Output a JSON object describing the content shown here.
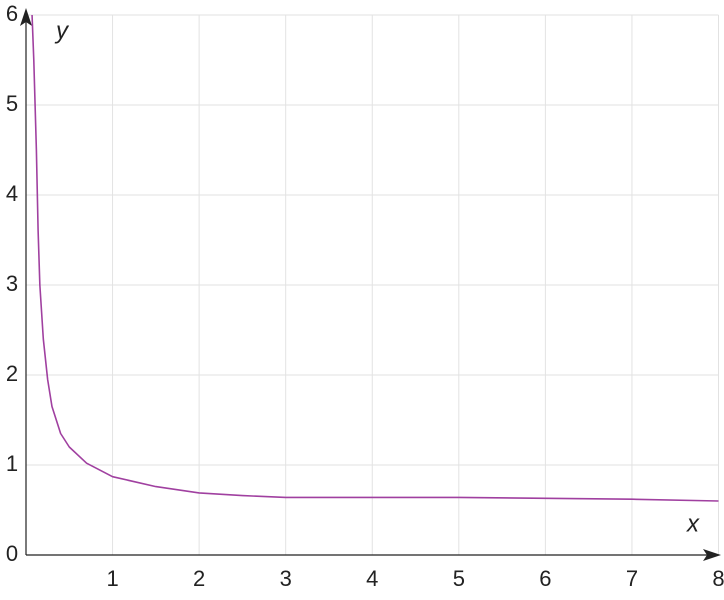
{
  "chart_data": {
    "type": "line",
    "x_label": "x",
    "y_label": "y",
    "x": [
      0.07,
      0.09,
      0.12,
      0.14,
      0.16,
      0.2,
      0.25,
      0.3,
      0.4,
      0.5,
      0.7,
      1,
      1.5,
      2,
      2.5,
      3,
      4,
      5,
      6,
      7,
      8
    ],
    "series": [
      {
        "color": "#a040a0",
        "values": [
          6,
          5.5,
          4.5,
          3.6,
          3,
          2.4,
          1.95,
          1.65,
          1.35,
          1.2,
          1.02,
          0.87,
          0.76,
          0.69,
          0.66,
          0.64,
          0.64,
          0.64,
          0.63,
          0.62,
          0.6
        ]
      }
    ],
    "xlim": [
      0,
      8
    ],
    "ylim": [
      0,
      6
    ],
    "xticks": [
      1,
      2,
      3,
      4,
      5,
      6,
      7,
      8
    ],
    "yticks": [
      0,
      1,
      2,
      3,
      4,
      5,
      6
    ],
    "grid": true
  }
}
